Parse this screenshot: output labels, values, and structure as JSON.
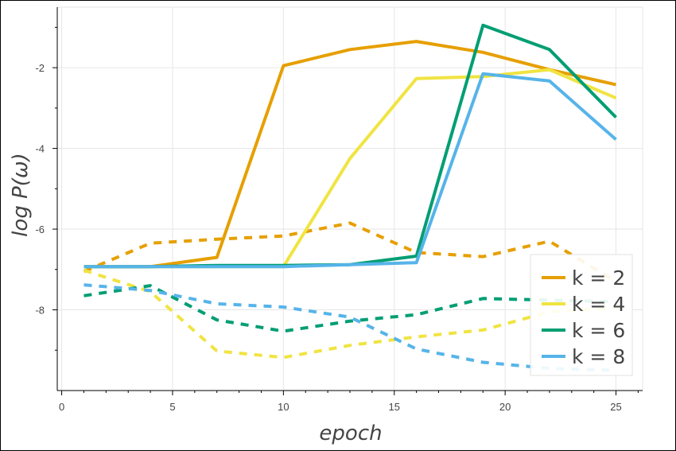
{
  "chart_data": {
    "type": "line",
    "title": "",
    "xlabel": "epoch",
    "ylabel": "log P(ω)",
    "xlim": [
      -0.2,
      26.2
    ],
    "ylim": [
      -10,
      -0.5
    ],
    "xticks": [
      0,
      5,
      10,
      15,
      20,
      25
    ],
    "yticks": [
      -2,
      -4,
      -6,
      -8
    ],
    "xticks_minor": [
      1,
      2,
      3,
      4,
      6,
      7,
      8,
      9,
      11,
      12,
      13,
      14,
      16,
      17,
      18,
      19,
      21,
      22,
      23,
      24,
      26
    ],
    "yticks_minor": [
      -1,
      -3,
      -5,
      -7,
      -9
    ],
    "grid": true,
    "legend_position": "bottom-right",
    "series": [
      {
        "name": "k = 2",
        "color": "#E69F00",
        "style": "solid",
        "x": [
          1,
          4,
          7,
          10,
          13,
          16,
          19,
          22,
          25
        ],
        "y": [
          -6.93,
          -6.93,
          -6.7,
          -1.95,
          -1.55,
          -1.35,
          -1.62,
          -2.05,
          -2.42
        ]
      },
      {
        "name": "k = 4",
        "color": "#F0E442",
        "style": "solid",
        "x": [
          1,
          4,
          7,
          10,
          13,
          16,
          19,
          22,
          25
        ],
        "y": [
          -6.93,
          -6.93,
          -6.93,
          -6.93,
          -4.25,
          -2.27,
          -2.22,
          -2.05,
          -2.75
        ]
      },
      {
        "name": "k = 6",
        "color": "#009E73",
        "style": "solid",
        "x": [
          1,
          4,
          7,
          10,
          13,
          16,
          19,
          22,
          25
        ],
        "y": [
          -6.93,
          -6.93,
          -6.9,
          -6.9,
          -6.88,
          -6.67,
          -0.95,
          -1.55,
          -3.23
        ]
      },
      {
        "name": "k = 8",
        "color": "#56B4E9",
        "style": "solid",
        "x": [
          1,
          4,
          7,
          10,
          13,
          16,
          19,
          22,
          25
        ],
        "y": [
          -6.93,
          -6.93,
          -6.93,
          -6.93,
          -6.88,
          -6.83,
          -2.15,
          -2.33,
          -3.78
        ]
      },
      {
        "name": "",
        "color": "#E69F00",
        "style": "dashed",
        "x": [
          1,
          4,
          7,
          10,
          13,
          16,
          19,
          22,
          25
        ],
        "y": [
          -7.05,
          -6.35,
          -6.25,
          -6.17,
          -5.85,
          -6.58,
          -6.68,
          -6.3,
          -7.3
        ]
      },
      {
        "name": "",
        "color": "#F0E442",
        "style": "dashed",
        "x": [
          1,
          4,
          7,
          10,
          13,
          16,
          19,
          22,
          25
        ],
        "y": [
          -7.02,
          -7.55,
          -9.02,
          -9.18,
          -8.88,
          -8.67,
          -8.5,
          -8.05,
          -7.95
        ]
      },
      {
        "name": "",
        "color": "#009E73",
        "style": "dashed",
        "x": [
          1,
          4,
          7,
          10,
          13,
          16,
          19,
          22,
          25
        ],
        "y": [
          -7.65,
          -7.4,
          -8.25,
          -8.53,
          -8.28,
          -8.12,
          -7.72,
          -7.76,
          -7.8
        ]
      },
      {
        "name": "",
        "color": "#56B4E9",
        "style": "dashed",
        "x": [
          1,
          4,
          7,
          10,
          13,
          16,
          19,
          22,
          25
        ],
        "y": [
          -7.38,
          -7.52,
          -7.85,
          -7.93,
          -8.18,
          -8.97,
          -9.3,
          -9.45,
          -9.5
        ]
      }
    ]
  }
}
